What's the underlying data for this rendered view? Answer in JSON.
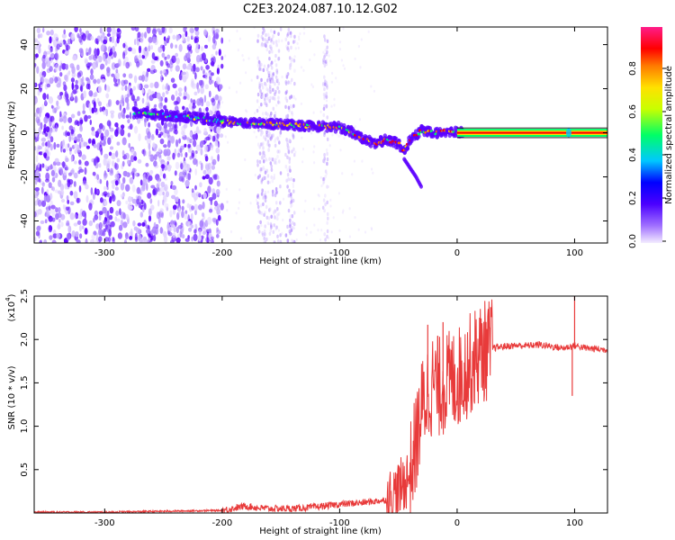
{
  "title": "C2E3.2024.087.10.12.G02",
  "colors": {
    "point_cloud": "#6a2cff",
    "snr_line": "#e83a3a",
    "colorbar": [
      "#c9b6ff",
      "#6a00ff",
      "#0000ff",
      "#00c8ff",
      "#00ff66",
      "#ffe100",
      "#ff7a00",
      "#ff0000",
      "#ff1c8a"
    ]
  },
  "chart_data": [
    {
      "type": "heatmap",
      "title": "C2E3.2024.087.10.12.G02",
      "xlabel": "Height of straight line (km)",
      "ylabel": "Frequency (Hz)",
      "xlim": [
        -360,
        128
      ],
      "ylim": [
        -50,
        48
      ],
      "xticks": [
        "-300",
        "-200",
        "-100",
        "0",
        "100"
      ],
      "yticks": [
        "-40",
        "-20",
        "0",
        "20",
        "40"
      ],
      "colorbar": {
        "label": "Normalized spectral amplitude",
        "range": [
          0.0,
          1.0
        ],
        "ticks": [
          "0.0",
          "0.2",
          "0.4",
          "0.6",
          "0.8"
        ]
      },
      "ridge": {
        "name": "main frequency track",
        "x": [
          -275,
          -250,
          -225,
          -200,
          -180,
          -160,
          -140,
          -120,
          -100,
          -90,
          -80,
          -70,
          -60,
          -50,
          -45,
          -40,
          -30,
          -20,
          -10,
          0,
          20,
          60,
          100,
          128
        ],
        "y": [
          9,
          8,
          7,
          5,
          4.5,
          4,
          3.5,
          3,
          2.5,
          0.5,
          -2.5,
          -5,
          -3,
          -5,
          -8,
          -3,
          1,
          0,
          0.5,
          0.5,
          0,
          0,
          0,
          0
        ]
      },
      "branch": {
        "x": [
          -45,
          -40,
          -35,
          -30
        ],
        "y": [
          -12,
          -16,
          -20,
          -25
        ]
      },
      "grid": false,
      "legend": "none"
    },
    {
      "type": "line",
      "title": "",
      "xlabel": "Height of straight line (km)",
      "ylabel": "SNR (10 * v/v)",
      "scale_label": "(x10",
      "scale_exp": "4",
      "scale_close": ")",
      "xlim": [
        -360,
        128
      ],
      "ylim": [
        0,
        2.5
      ],
      "xticks": [
        "-300",
        "-200",
        "-100",
        "0",
        "100"
      ],
      "yticks": [
        "0.5",
        "1.0",
        "1.5",
        "2.0",
        "2.5"
      ],
      "series": [
        {
          "x": [
            -360,
            -300,
            -250,
            -200,
            -180,
            -170,
            -160,
            -140,
            -120,
            -100,
            -80,
            -60,
            -50,
            -40,
            -35,
            -30,
            -25,
            -20,
            -15,
            -10,
            0,
            10,
            20,
            30,
            40,
            50,
            60,
            70,
            80,
            90,
            100,
            110,
            128
          ],
          "y": [
            0.01,
            0.01,
            0.02,
            0.03,
            0.08,
            0.06,
            0.05,
            0.05,
            0.07,
            0.1,
            0.12,
            0.15,
            0.25,
            0.45,
            0.8,
            1.2,
            1.4,
            1.5,
            1.45,
            1.5,
            1.55,
            1.7,
            1.85,
            1.9,
            1.92,
            1.93,
            1.93,
            1.94,
            1.92,
            1.9,
            1.93,
            1.9,
            1.88
          ]
        }
      ],
      "spikes": [
        {
          "x": -25,
          "y": 2.17
        },
        {
          "x": -12,
          "y": 2.2
        },
        {
          "x": 100,
          "y": 2.5
        },
        {
          "x": 98,
          "y": 1.35
        }
      ],
      "grid": false,
      "legend": "none"
    }
  ]
}
